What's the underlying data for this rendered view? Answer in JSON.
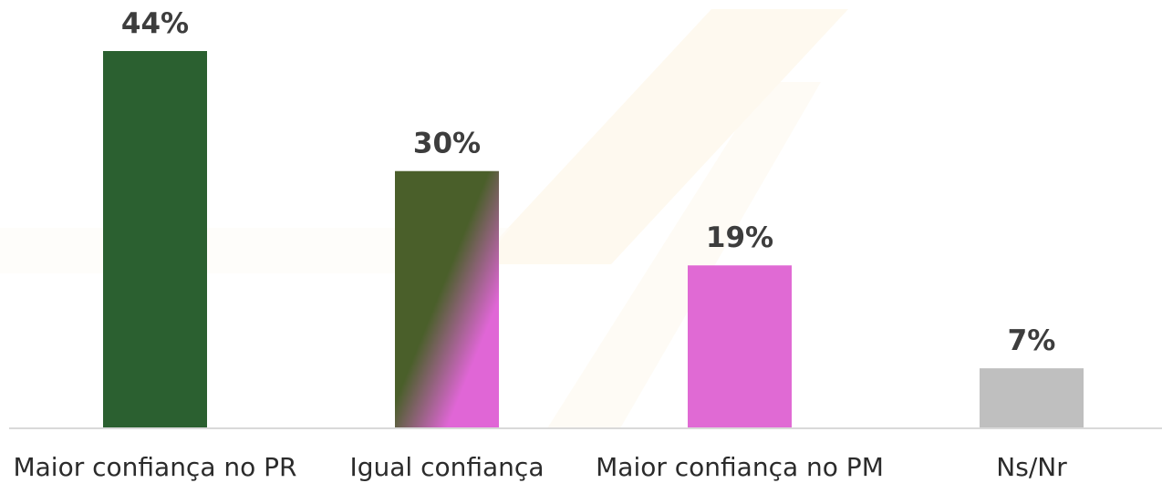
{
  "chart_data": {
    "type": "bar",
    "categories": [
      "Maior confiança no PR",
      "Igual confiança",
      "Maior confiança no PM",
      "Ns/Nr"
    ],
    "values": [
      44,
      30,
      19,
      7
    ],
    "value_labels": [
      "44%",
      "30%",
      "19%",
      "7%"
    ],
    "ylim": [
      0,
      44
    ],
    "grid": false,
    "colors": [
      "#2b6030",
      "gradient:#4a5f2a-#e066d6",
      "#e06ad4",
      "#bfbfbf"
    ]
  }
}
